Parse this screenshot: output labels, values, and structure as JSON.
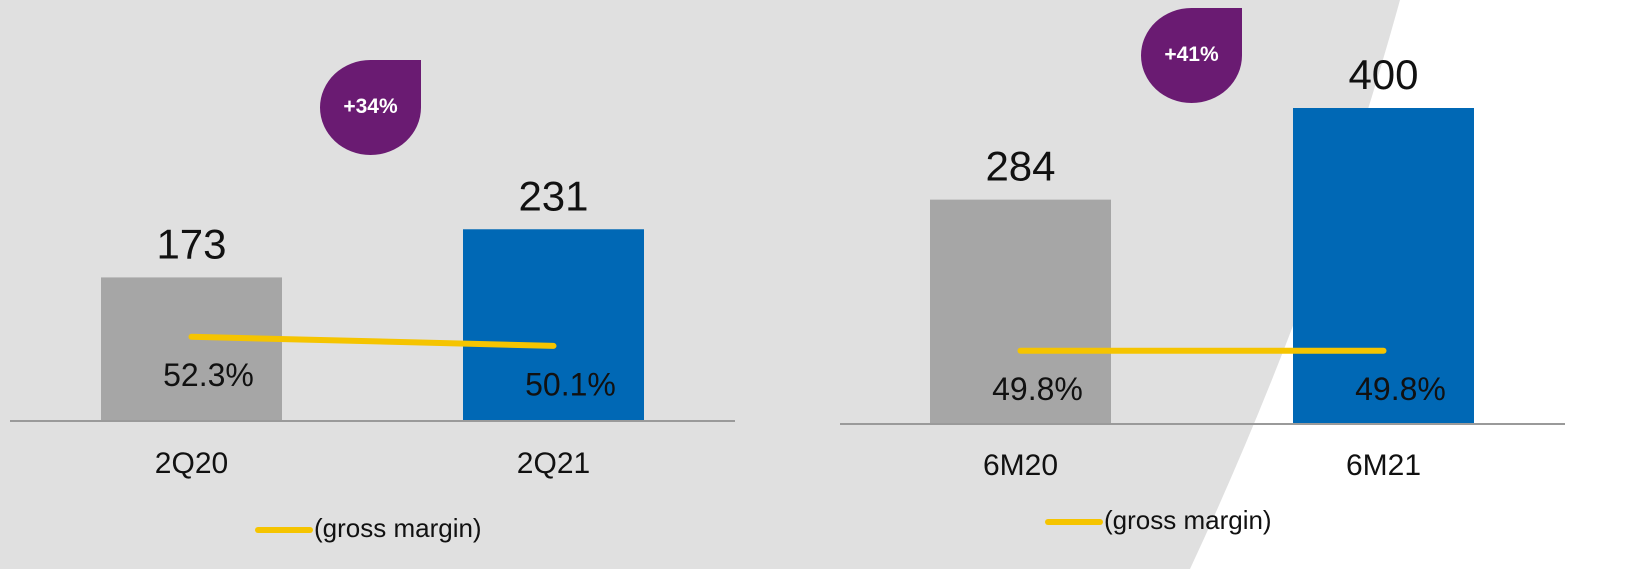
{
  "chart_data": [
    {
      "type": "bar",
      "categories": [
        "2Q20",
        "2Q21"
      ],
      "annotation": "+34%",
      "ylim": [
        0,
        300
      ],
      "y2lim": [
        32,
        92
      ],
      "series": [
        {
          "values": [
            173,
            231
          ],
          "colors": [
            "#a6a6a6",
            "#0068b5"
          ]
        },
        {
          "name": "(gross margin)",
          "color": "#f5c400",
          "axis": "y2",
          "values": [
            52.3,
            50.1
          ],
          "value_labels": [
            "52.3%",
            "50.1%"
          ]
        }
      ]
    },
    {
      "type": "bar",
      "categories": [
        "6M20",
        "6M21"
      ],
      "annotation": "+41%",
      "ylim": [
        0,
        500
      ],
      "y2lim": [
        32,
        128
      ],
      "series": [
        {
          "values": [
            284,
            400
          ],
          "colors": [
            "#a6a6a6",
            "#0068b5"
          ]
        },
        {
          "name": "(gross margin)",
          "color": "#f5c400",
          "axis": "y2",
          "values": [
            49.8,
            49.8
          ],
          "value_labels": [
            "49.8%",
            "49.8%"
          ]
        }
      ]
    }
  ]
}
